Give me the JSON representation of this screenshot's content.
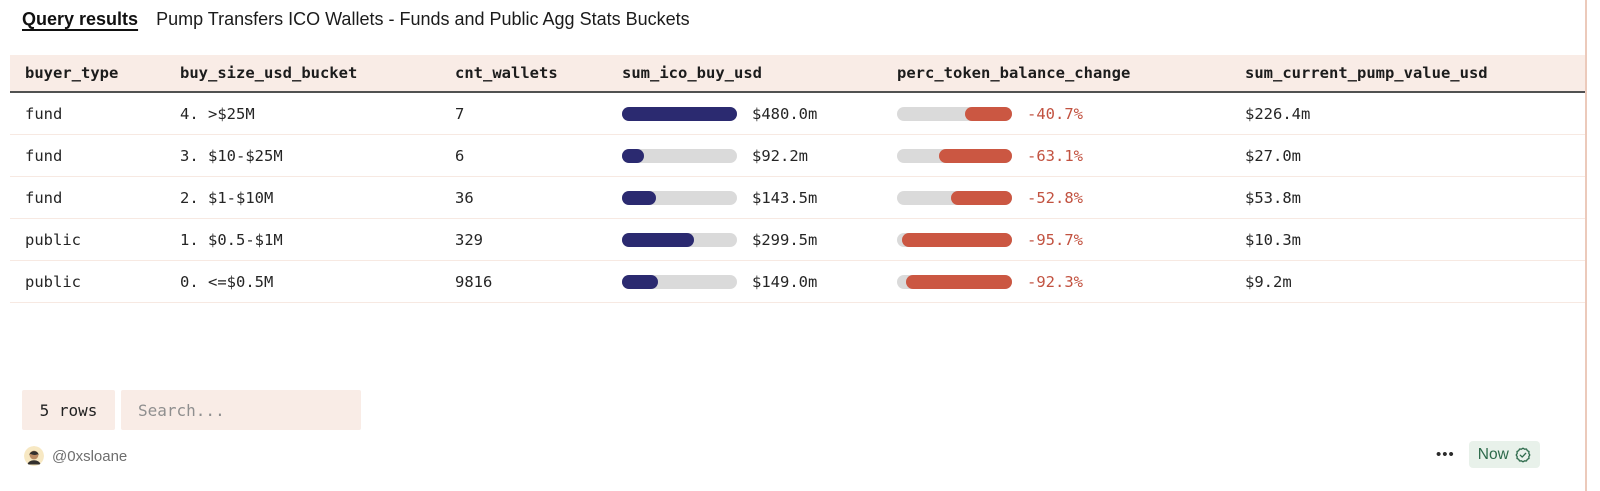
{
  "header": {
    "tab_label": "Query results",
    "title": "Pump Transfers ICO Wallets - Funds and Public Agg Stats Buckets"
  },
  "table": {
    "columns": [
      "buyer_type",
      "buy_size_usd_bucket",
      "cnt_wallets",
      "sum_ico_buy_usd",
      "perc_token_balance_change",
      "sum_current_pump_value_usd"
    ],
    "rows": [
      {
        "buyer_type": "fund",
        "bucket": "4. >$25M",
        "cnt_wallets": "7",
        "sum_ico_buy_usd": "$480.0m",
        "ico_bar_pct": 100,
        "perc_change": "-40.7%",
        "perc_bar_pct": 40.7,
        "pump_value": "$226.4m"
      },
      {
        "buyer_type": "fund",
        "bucket": "3. $10-$25M",
        "cnt_wallets": "6",
        "sum_ico_buy_usd": "$92.2m",
        "ico_bar_pct": 19.2,
        "perc_change": "-63.1%",
        "perc_bar_pct": 63.1,
        "pump_value": "$27.0m"
      },
      {
        "buyer_type": "fund",
        "bucket": "2. $1-$10M",
        "cnt_wallets": "36",
        "sum_ico_buy_usd": "$143.5m",
        "ico_bar_pct": 29.9,
        "perc_change": "-52.8%",
        "perc_bar_pct": 52.8,
        "pump_value": "$53.8m"
      },
      {
        "buyer_type": "public",
        "bucket": "1. $0.5-$1M",
        "cnt_wallets": "329",
        "sum_ico_buy_usd": "$299.5m",
        "ico_bar_pct": 62.4,
        "perc_change": "-95.7%",
        "perc_bar_pct": 95.7,
        "pump_value": "$10.3m"
      },
      {
        "buyer_type": "public",
        "bucket": "0. <=$0.5M",
        "cnt_wallets": "9816",
        "sum_ico_buy_usd": "$149.0m",
        "ico_bar_pct": 31.0,
        "perc_change": "-92.3%",
        "perc_bar_pct": 92.3,
        "pump_value": "$9.2m"
      }
    ]
  },
  "footer": {
    "row_count_label": "5 rows",
    "search_placeholder": "Search...",
    "author": "@0xsloane",
    "menu_icon": "•••",
    "freshness_label": "Now"
  },
  "colors": {
    "header_bg": "#f9ece6",
    "row_separator": "#f7e9e2",
    "bar_positive": "#2b2a70",
    "bar_negative": "#cb5742",
    "negative_text": "#c25240",
    "bar_track": "#dadada",
    "freshness_bg": "#e8f1ea",
    "freshness_text": "#2d6a4b",
    "right_border": "#eccabb"
  }
}
